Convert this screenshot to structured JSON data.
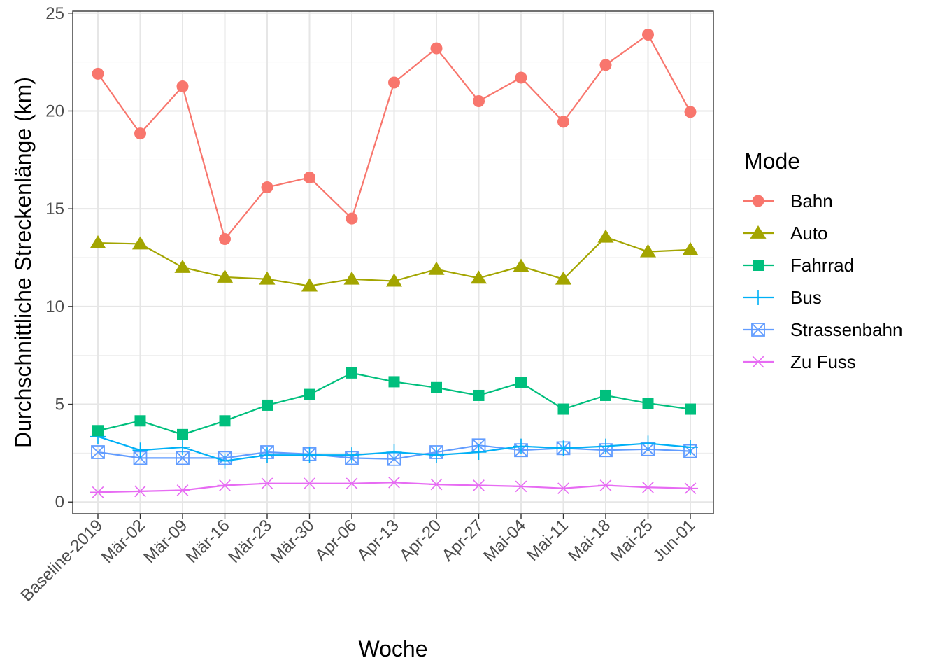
{
  "chart_data": {
    "type": "line",
    "xlabel": "Woche",
    "ylabel": "Durchschnittliche Streckenlänge (km)",
    "categories": [
      "Baseline-2019",
      "Mär-02",
      "Mär-09",
      "Mär-16",
      "Mär-23",
      "Mär-30",
      "Apr-06",
      "Apr-13",
      "Apr-20",
      "Apr-27",
      "Mai-04",
      "Mai-11",
      "Mai-18",
      "Mai-25",
      "Jun-01"
    ],
    "ylim": [
      -0.6,
      25.1
    ],
    "yticks": [
      0,
      5,
      10,
      15,
      20,
      25
    ],
    "grid": true,
    "legend": {
      "title": "Mode",
      "position": "right"
    },
    "series": [
      {
        "name": "Bahn",
        "color": "#F8766D",
        "marker": "circle",
        "values": [
          21.9,
          18.85,
          21.25,
          13.45,
          16.1,
          16.6,
          14.5,
          21.45,
          23.2,
          20.5,
          21.7,
          19.45,
          22.35,
          23.9,
          19.95
        ]
      },
      {
        "name": "Auto",
        "color": "#A3A500",
        "marker": "triangle",
        "values": [
          13.25,
          13.2,
          12.0,
          11.5,
          11.4,
          11.05,
          11.4,
          11.3,
          11.9,
          11.45,
          12.05,
          11.4,
          13.55,
          12.8,
          12.9
        ]
      },
      {
        "name": "Fahrrad",
        "color": "#00BF7D",
        "marker": "square",
        "values": [
          3.65,
          4.15,
          3.45,
          4.15,
          4.95,
          5.5,
          6.6,
          6.15,
          5.85,
          5.45,
          6.1,
          4.75,
          5.45,
          5.05,
          4.75
        ]
      },
      {
        "name": "Bus",
        "color": "#00B0F6",
        "marker": "plus",
        "values": [
          3.35,
          2.65,
          2.8,
          2.1,
          2.4,
          2.4,
          2.4,
          2.55,
          2.4,
          2.55,
          2.85,
          2.75,
          2.85,
          3.0,
          2.8
        ]
      },
      {
        "name": "Strassenbahn",
        "color": "#619CFF",
        "marker": "boxed-x",
        "values": [
          2.55,
          2.25,
          2.25,
          2.25,
          2.55,
          2.45,
          2.25,
          2.2,
          2.55,
          2.9,
          2.65,
          2.75,
          2.65,
          2.7,
          2.6
        ]
      },
      {
        "name": "Zu Fuss",
        "color": "#E76BF3",
        "marker": "asterisk",
        "values": [
          0.5,
          0.55,
          0.6,
          0.85,
          0.95,
          0.95,
          0.95,
          1.0,
          0.9,
          0.85,
          0.8,
          0.7,
          0.85,
          0.75,
          0.7
        ]
      }
    ]
  }
}
